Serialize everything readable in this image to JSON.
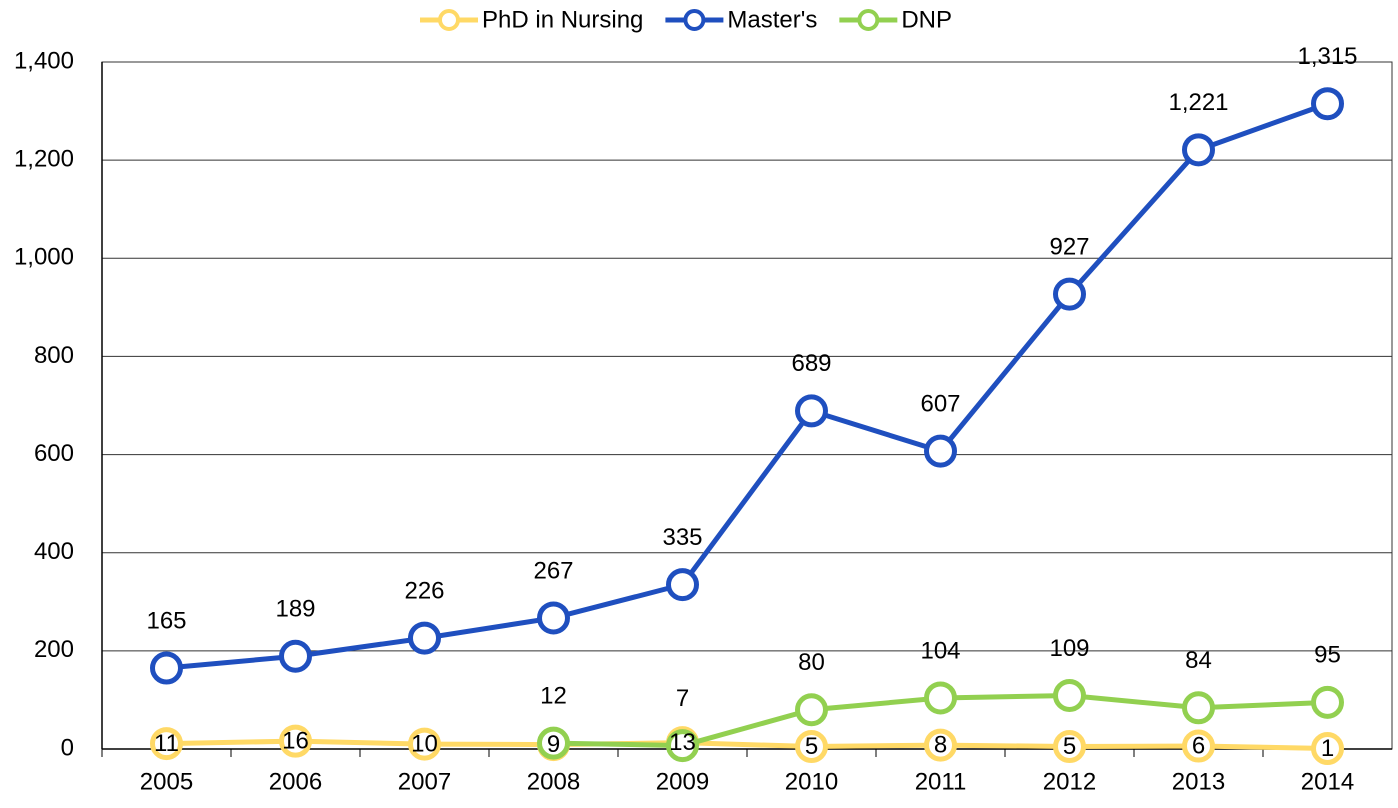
{
  "chart_data": {
    "type": "line",
    "categories": [
      "2005",
      "2006",
      "2007",
      "2008",
      "2009",
      "2010",
      "2011",
      "2012",
      "2013",
      "2014"
    ],
    "series": [
      {
        "name": "PhD in Nursing",
        "color": "#ffd966",
        "values": [
          11,
          16,
          10,
          9,
          13,
          5,
          8,
          5,
          6,
          1
        ]
      },
      {
        "name": "Master's",
        "color": "#1f4fbf",
        "values": [
          165,
          189,
          226,
          267,
          335,
          689,
          607,
          927,
          1221,
          1315
        ],
        "value_labels": [
          "165",
          "189",
          "226",
          "267",
          "335",
          "689",
          "607",
          "927",
          "1,221",
          "1,315"
        ]
      },
      {
        "name": "DNP",
        "color": "#92d050",
        "values": [
          null,
          null,
          null,
          12,
          7,
          80,
          104,
          109,
          84,
          95
        ]
      }
    ],
    "ylim": [
      0,
      1400
    ],
    "yticks": [
      0,
      200,
      400,
      600,
      800,
      {
        "value": 1000,
        "label": "1,000"
      },
      {
        "value": 1200,
        "label": "1,200"
      },
      {
        "value": 1400,
        "label": "1,400"
      }
    ],
    "grid": true,
    "legend": "top"
  }
}
